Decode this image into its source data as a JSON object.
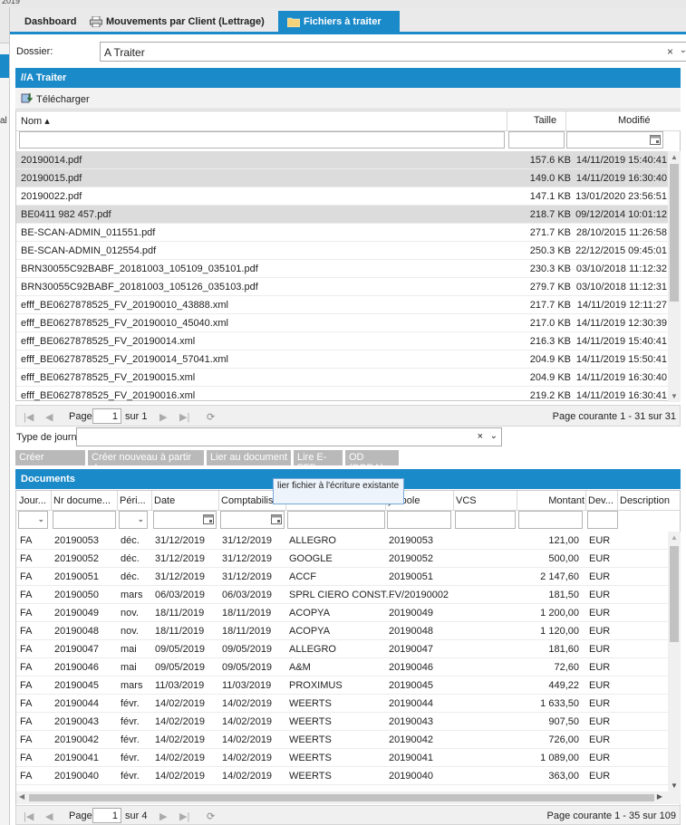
{
  "window": {
    "title_fragment": "2019"
  },
  "left_panel": {
    "label_fragment": "al"
  },
  "tabs": [
    {
      "label": "Dashboard"
    },
    {
      "label": "Mouvements par Client (Lettrage)"
    },
    {
      "label": "Fichiers à traiter"
    }
  ],
  "dossier": {
    "label": "Dossier:",
    "value": "A Traiter",
    "clear": "×",
    "dropdown": "⌄"
  },
  "folder_panel": {
    "title": "//A Traiter",
    "download_label": "Télécharger"
  },
  "files": {
    "columns": {
      "name": "Nom ▴",
      "size": "Taille",
      "modified": "Modifié"
    },
    "rows": [
      {
        "name": "20190014.pdf",
        "size": "157.6 KB",
        "modified": "14/11/2019 15:40:41"
      },
      {
        "name": "20190015.pdf",
        "size": "149.0 KB",
        "modified": "14/11/2019 16:30:40"
      },
      {
        "name": "20190022.pdf",
        "size": "147.1 KB",
        "modified": "13/01/2020 23:56:51"
      },
      {
        "name": "BE0411 982 457.pdf",
        "size": "218.7 KB",
        "modified": "09/12/2014 10:01:12"
      },
      {
        "name": "BE-SCAN-ADMIN_011551.pdf",
        "size": "271.7 KB",
        "modified": "28/10/2015 11:26:58"
      },
      {
        "name": "BE-SCAN-ADMIN_012554.pdf",
        "size": "250.3 KB",
        "modified": "22/12/2015 09:45:01"
      },
      {
        "name": "BRN30055C92BABF_20181003_105109_035101.pdf",
        "size": "230.3 KB",
        "modified": "03/10/2018 11:12:32"
      },
      {
        "name": "BRN30055C92BABF_20181003_105126_035103.pdf",
        "size": "279.7 KB",
        "modified": "03/10/2018 11:12:31"
      },
      {
        "name": "efff_BE0627878525_FV_20190010_43888.xml",
        "size": "217.7 KB",
        "modified": "14/11/2019 12:11:27"
      },
      {
        "name": "efff_BE0627878525_FV_20190010_45040.xml",
        "size": "217.0 KB",
        "modified": "14/11/2019 12:30:39"
      },
      {
        "name": "efff_BE0627878525_FV_20190014.xml",
        "size": "216.3 KB",
        "modified": "14/11/2019 15:40:41"
      },
      {
        "name": "efff_BE0627878525_FV_20190014_57041.xml",
        "size": "204.9 KB",
        "modified": "14/11/2019 15:50:41"
      },
      {
        "name": "efff_BE0627878525_FV_20190015.xml",
        "size": "204.9 KB",
        "modified": "14/11/2019 16:30:40"
      },
      {
        "name": "efff_BE0627878525_FV_20190016.xml",
        "size": "219.2 KB",
        "modified": "14/11/2019 16:30:41"
      }
    ],
    "pager": {
      "page_label": "Page",
      "page_value": "1",
      "of_label": "sur 1",
      "info": "Page courante 1 - 31 sur 31"
    }
  },
  "journal": {
    "label": "Type de journal:",
    "value": "",
    "clear": "×",
    "dropdown": "⌄"
  },
  "actions": [
    {
      "label": "Créer nouveau"
    },
    {
      "label": "Créer nouveau à partir de"
    },
    {
      "label": "Lier au document"
    },
    {
      "label": "Lire E-FFF"
    },
    {
      "label": "OD (SODA)"
    }
  ],
  "tooltip": {
    "text": "lier fichier à l'écriture existante"
  },
  "documents": {
    "title": "Documents",
    "columns": [
      "Jour...",
      "Nr docume...",
      "Péri...",
      "Date",
      "Comptabilis",
      "",
      "ymbole",
      "VCS",
      "Montant",
      "Dev...",
      "Description"
    ],
    "rows": [
      [
        "FA",
        "20190053",
        "déc.",
        "31/12/2019",
        "31/12/2019",
        "ALLEGRO",
        "20190053",
        "",
        "121,00",
        "EUR"
      ],
      [
        "FA",
        "20190052",
        "déc.",
        "31/12/2019",
        "31/12/2019",
        "GOOGLE",
        "20190052",
        "",
        "500,00",
        "EUR"
      ],
      [
        "FA",
        "20190051",
        "déc.",
        "31/12/2019",
        "31/12/2019",
        "ACCF",
        "20190051",
        "",
        "2 147,60",
        "EUR"
      ],
      [
        "FA",
        "20190050",
        "mars",
        "06/03/2019",
        "06/03/2019",
        "SPRL CIERO CONST...",
        "FV/20190002",
        "",
        "181,50",
        "EUR"
      ],
      [
        "FA",
        "20190049",
        "nov.",
        "18/11/2019",
        "18/11/2019",
        "ACOPYA",
        "20190049",
        "",
        "1 200,00",
        "EUR"
      ],
      [
        "FA",
        "20190048",
        "nov.",
        "18/11/2019",
        "18/11/2019",
        "ACOPYA",
        "20190048",
        "",
        "1 120,00",
        "EUR"
      ],
      [
        "FA",
        "20190047",
        "mai",
        "09/05/2019",
        "09/05/2019",
        "ALLEGRO",
        "20190047",
        "",
        "181,60",
        "EUR"
      ],
      [
        "FA",
        "20190046",
        "mai",
        "09/05/2019",
        "09/05/2019",
        "A&M",
        "20190046",
        "",
        "72,60",
        "EUR"
      ],
      [
        "FA",
        "20190045",
        "mars",
        "11/03/2019",
        "11/03/2019",
        "PROXIMUS",
        "20190045",
        "",
        "449,22",
        "EUR"
      ],
      [
        "FA",
        "20190044",
        "févr.",
        "14/02/2019",
        "14/02/2019",
        "WEERTS",
        "20190044",
        "",
        "1 633,50",
        "EUR"
      ],
      [
        "FA",
        "20190043",
        "févr.",
        "14/02/2019",
        "14/02/2019",
        "WEERTS",
        "20190043",
        "",
        "907,50",
        "EUR"
      ],
      [
        "FA",
        "20190042",
        "févr.",
        "14/02/2019",
        "14/02/2019",
        "WEERTS",
        "20190042",
        "",
        "726,00",
        "EUR"
      ],
      [
        "FA",
        "20190041",
        "févr.",
        "14/02/2019",
        "14/02/2019",
        "WEERTS",
        "20190041",
        "",
        "1 089,00",
        "EUR"
      ],
      [
        "FA",
        "20190040",
        "févr.",
        "14/02/2019",
        "14/02/2019",
        "WEERTS",
        "20190040",
        "",
        "363,00",
        "EUR"
      ]
    ],
    "pager": {
      "page_label": "Page",
      "page_value": "1",
      "of_label": "sur 4",
      "info": "Page courante 1 - 35 sur 109"
    }
  },
  "colors": {
    "accent": "#1b8ac9",
    "disabled_button": "#b9b9b9",
    "selected_row": "#dcdcdc"
  }
}
